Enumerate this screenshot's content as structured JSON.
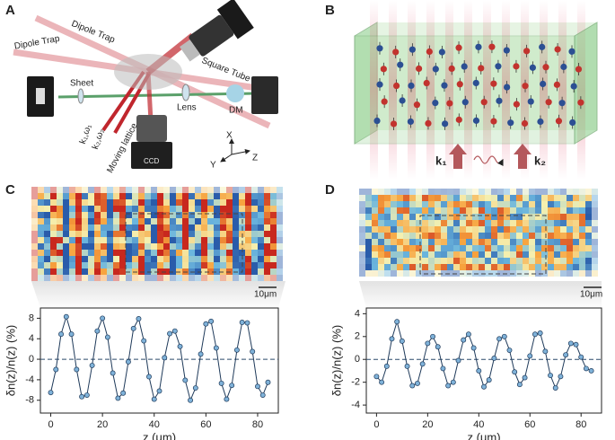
{
  "panel_letters": [
    "A",
    "B",
    "C",
    "D"
  ],
  "diagram_a": {
    "dipole_trap_upper": "Dipole Trap",
    "dipole_trap_lower": "Dipole Trap",
    "square_tube": "Square Tube",
    "sheet": "Sheet",
    "lens": "Lens",
    "dm": "DM",
    "moving_lattice": "Moving lattice",
    "beam_1": "k₁,ω₁",
    "beam_2": "k₂,ω₂",
    "ccd": "CCD",
    "axis_x": "X",
    "axis_y": "Y",
    "axis_z": "Z"
  },
  "diagram_b": {
    "k1": "k₁",
    "k2": "k₂"
  },
  "images": {
    "scale_bar_c": "10μm",
    "scale_bar_d": "10μm"
  },
  "chart_data": [
    {
      "type": "line",
      "xlabel": "z (μm)",
      "ylabel": "δn(z)/n(z) (%)",
      "color": "#1f3a5a",
      "marker_color": "#7fb2d9",
      "xlim": [
        -4,
        88
      ],
      "ylim": [
        -10.5,
        10
      ],
      "xticks": [
        0,
        20,
        40,
        60,
        80
      ],
      "yticks": [
        -8,
        -4,
        0,
        4,
        8
      ],
      "reference_line": 0,
      "x": [
        0,
        2,
        4,
        6,
        8,
        10,
        12,
        14,
        16,
        18,
        20,
        22,
        24,
        26,
        28,
        30,
        32,
        34,
        36,
        38,
        40,
        42,
        44,
        46,
        48,
        50,
        52,
        54,
        56,
        58,
        60,
        62,
        64,
        66,
        68,
        70,
        72,
        74,
        76,
        78,
        80,
        82,
        84
      ],
      "values": [
        -6.5,
        -2.0,
        4.9,
        8.3,
        4.9,
        -2.0,
        -7.3,
        -7.0,
        -1.2,
        5.5,
        8.0,
        4.3,
        -2.7,
        -7.6,
        -6.6,
        -0.5,
        6.0,
        7.9,
        3.6,
        -3.4,
        -7.8,
        -6.2,
        0.3,
        5.0,
        5.5,
        2.5,
        -4.1,
        -8.0,
        -5.6,
        1.0,
        6.9,
        7.4,
        2.2,
        -4.7,
        -7.8,
        -5.1,
        1.8,
        7.2,
        7.1,
        1.5,
        -5.3,
        -7.0,
        -4.5
      ]
    },
    {
      "type": "line",
      "xlabel": "z (μm)",
      "ylabel": "δn(z)/n(z) (%)",
      "color": "#1f3a5a",
      "marker_color": "#7fb2d9",
      "xlim": [
        -4,
        88
      ],
      "ylim": [
        -4.7,
        4.5
      ],
      "xticks": [
        0,
        20,
        40,
        60,
        80
      ],
      "yticks": [
        -4,
        -2,
        0,
        2,
        4
      ],
      "reference_line": 0,
      "x": [
        0,
        2,
        4,
        6,
        8,
        10,
        12,
        14,
        16,
        18,
        20,
        22,
        24,
        26,
        28,
        30,
        32,
        34,
        36,
        38,
        40,
        42,
        44,
        46,
        48,
        50,
        52,
        54,
        56,
        58,
        60,
        62,
        64,
        66,
        68,
        70,
        72,
        74,
        76,
        78,
        80,
        82,
        84
      ],
      "values": [
        -1.5,
        -2.0,
        -0.6,
        1.8,
        3.3,
        1.6,
        -0.6,
        -2.3,
        -2.1,
        -0.4,
        1.4,
        2.0,
        1.1,
        -0.8,
        -2.3,
        -2.0,
        -0.1,
        1.7,
        2.2,
        1.0,
        -1.0,
        -2.4,
        -1.8,
        0.1,
        1.8,
        2.0,
        0.8,
        -1.1,
        -2.2,
        -1.6,
        0.3,
        2.2,
        2.3,
        0.7,
        -1.4,
        -2.5,
        -1.5,
        0.4,
        1.4,
        1.3,
        0.2,
        -0.8,
        -1.0
      ]
    }
  ]
}
